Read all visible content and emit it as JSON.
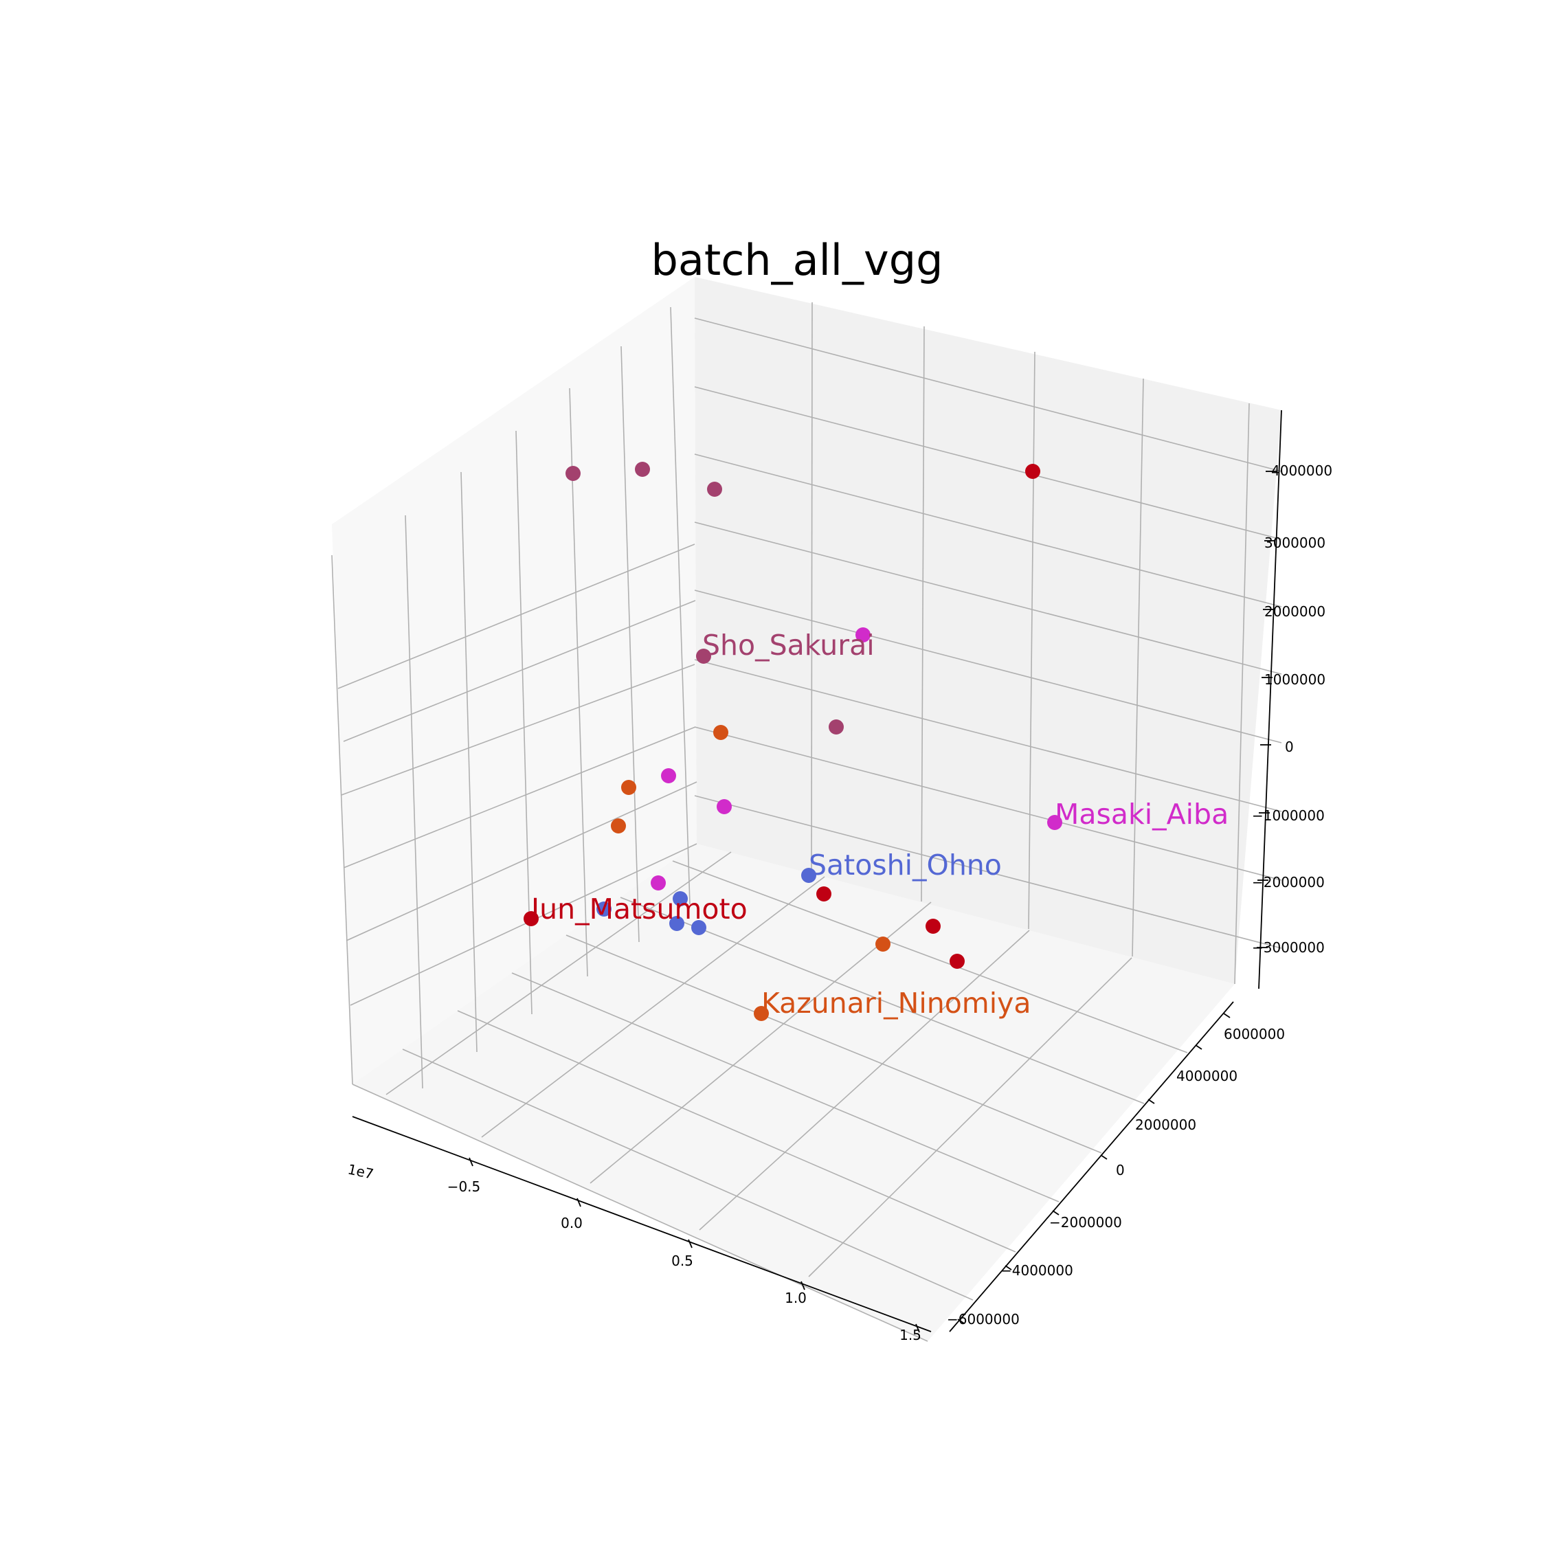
{
  "chart_data": {
    "type": "scatter",
    "projection": "3d",
    "title": "batch_all_vgg",
    "grid": true,
    "x_axis": {
      "offset_label": "1e7",
      "ticks": [
        "−0.5",
        "0.0",
        "0.5",
        "1.0",
        "1.5"
      ]
    },
    "y_axis": {
      "ticks": [
        "−6000000",
        "−4000000",
        "−2000000",
        "0",
        "2000000",
        "4000000",
        "6000000"
      ]
    },
    "z_axis": {
      "ticks": [
        "−3000000",
        "−2000000",
        "−1000000",
        "0",
        "1000000",
        "2000000",
        "3000000",
        "4000000"
      ]
    },
    "series": [
      {
        "name": "Jun_Matsumoto",
        "color": "#bf0013"
      },
      {
        "name": "Sho_Sakurai",
        "color": "#a3416e"
      },
      {
        "name": "Masaki_Aiba",
        "color": "#d12bca"
      },
      {
        "name": "Satoshi_Ohno",
        "color": "#5468d4"
      },
      {
        "name": "Kazunari_Ninomiya",
        "color": "#d45116"
      }
    ]
  }
}
